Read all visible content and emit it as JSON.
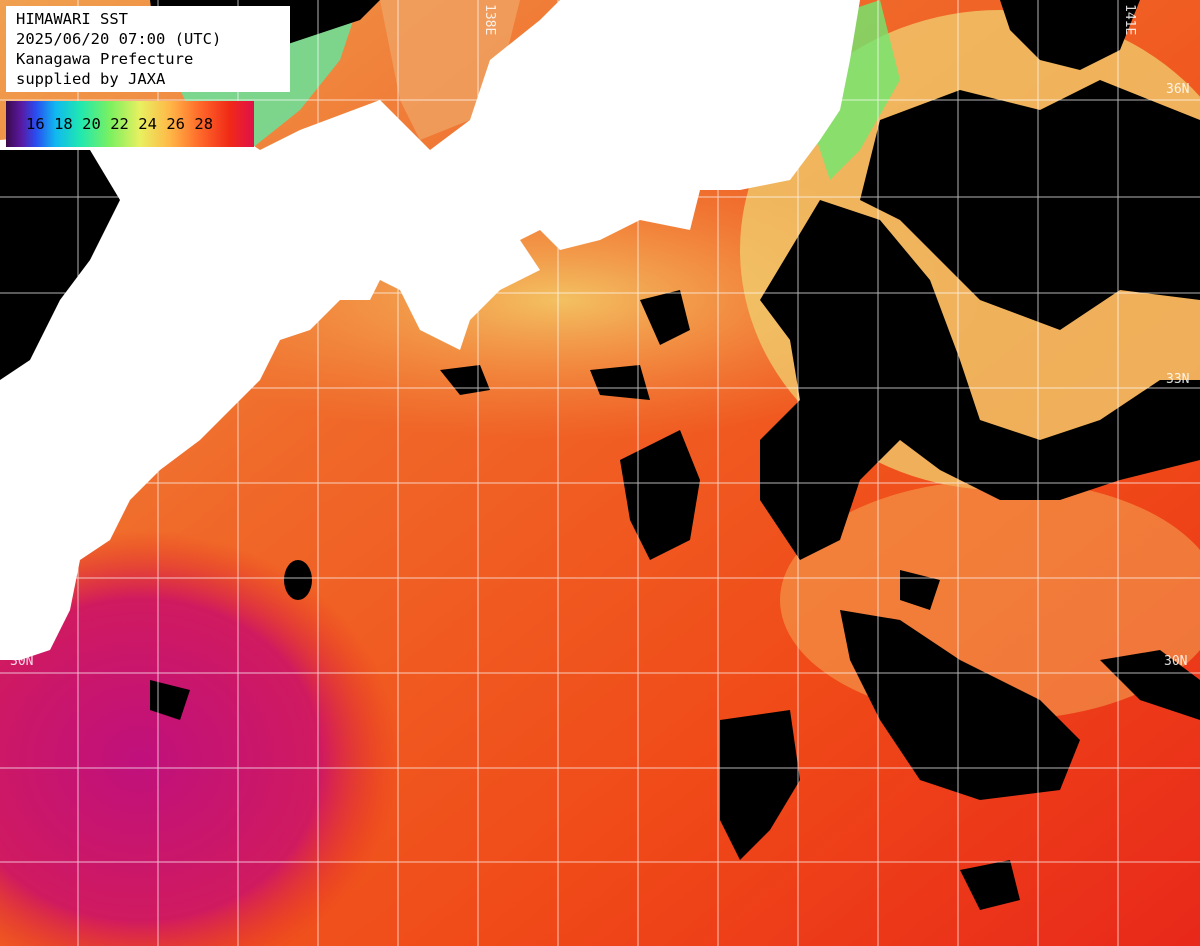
{
  "caption": {
    "line1": "HIMAWARI SST",
    "line2": "2025/06/20 07:00 (UTC)",
    "line3": "Kanagawa Prefecture",
    "line4": "supplied by JAXA"
  },
  "scale": {
    "ticks": [
      "16",
      "18",
      "20",
      "22",
      "24",
      "26",
      "28"
    ],
    "colors": [
      "#3a0a4a",
      "#2a4cf0",
      "#10b8f0",
      "#20e8b0",
      "#7cf060",
      "#e8f060",
      "#ffb848",
      "#ff6a2a",
      "#f02a18",
      "#e01048"
    ]
  },
  "graticule": {
    "lat_33_left": "33",
    "lat_33_right": "33N",
    "lat_30_left": "30N",
    "lat_30_right": "30N",
    "lat_36_right": "36N",
    "lon_138": "138E",
    "lon_141": "141E"
  },
  "colors": {
    "land": "#ffffff",
    "cloud_mask": "#000000",
    "warm_sea": "#f04a18",
    "hot_sea": "#c81878",
    "cool_sea": "#f0c060",
    "coastal": "#78f060",
    "grid": "#ffffff"
  }
}
